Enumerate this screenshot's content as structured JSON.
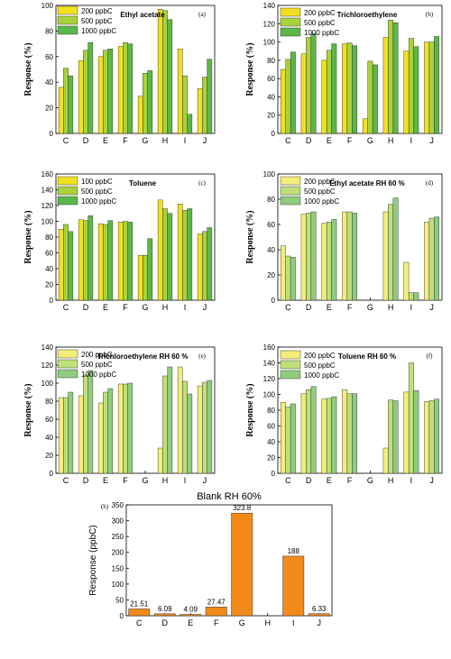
{
  "chart_data": [
    {
      "panel": "(a)",
      "type": "bar",
      "title": "Ethyl acetate",
      "ylabel": "Response (%)",
      "categories": [
        "C",
        "D",
        "E",
        "F",
        "G",
        "H",
        "I",
        "J"
      ],
      "ylim": [
        0,
        100
      ],
      "yticks": [
        0,
        20,
        40,
        60,
        80,
        100
      ],
      "series": [
        {
          "name": "200 ppbC",
          "color": "#f2e020",
          "values": [
            36,
            57,
            60,
            68,
            29,
            97,
            66,
            35
          ]
        },
        {
          "name": "500 ppbC",
          "color": "#a8d33c",
          "values": [
            51,
            65,
            65,
            71,
            47,
            96,
            45,
            44
          ]
        },
        {
          "name": "1000 ppbC",
          "color": "#5db649",
          "values": [
            45,
            71,
            66,
            70,
            49,
            89,
            15,
            58
          ]
        }
      ]
    },
    {
      "panel": "(b)",
      "type": "bar",
      "title": "Trichloroethylene",
      "ylabel": "Response (%)",
      "categories": [
        "C",
        "D",
        "E",
        "F",
        "G",
        "H",
        "I",
        "J"
      ],
      "ylim": [
        0,
        140
      ],
      "yticks": [
        0,
        20,
        40,
        60,
        80,
        100,
        120,
        140
      ],
      "series": [
        {
          "name": "200 ppbC",
          "color": "#f2e020",
          "values": [
            70,
            87,
            80,
            98,
            16,
            105,
            90,
            100
          ]
        },
        {
          "name": "500 ppbC",
          "color": "#a8d33c",
          "values": [
            81,
            105,
            91,
            99,
            79,
            124,
            104,
            100
          ]
        },
        {
          "name": "1000 ppbC",
          "color": "#5db649",
          "values": [
            89,
            109,
            98,
            96,
            75,
            121,
            95,
            106
          ]
        }
      ]
    },
    {
      "panel": "(c)",
      "type": "bar",
      "title": "Toluene",
      "ylabel": "Response (%)",
      "categories": [
        "C",
        "D",
        "E",
        "F",
        "G",
        "H",
        "I",
        "J"
      ],
      "ylim": [
        0,
        160
      ],
      "yticks": [
        0,
        20,
        40,
        60,
        80,
        100,
        120,
        140,
        160
      ],
      "series": [
        {
          "name": "100 ppbC",
          "color": "#f2e020",
          "values": [
            90,
            102,
            97,
            99,
            57,
            127,
            122,
            84
          ]
        },
        {
          "name": "500 ppbC",
          "color": "#a8d33c",
          "values": [
            96,
            101,
            96,
            100,
            57,
            116,
            114,
            87
          ]
        },
        {
          "name": "1000 ppbC",
          "color": "#5db649",
          "values": [
            87,
            107,
            101,
            99,
            78,
            110,
            116,
            92
          ]
        }
      ]
    },
    {
      "panel": "(d)",
      "type": "bar",
      "title": "Ethyl acetate  RH 60 %",
      "ylabel": "Response (%)",
      "categories": [
        "C",
        "D",
        "E",
        "F",
        "G",
        "H",
        "I",
        "J"
      ],
      "ylim": [
        0,
        100
      ],
      "yticks": [
        0,
        20,
        40,
        60,
        80,
        100
      ],
      "series": [
        {
          "name": "200 ppbC",
          "color": "#f3ed7a",
          "values": [
            43,
            68,
            61,
            70,
            0,
            70,
            30,
            62
          ]
        },
        {
          "name": "500 ppbC",
          "color": "#bfe07a",
          "values": [
            35,
            69,
            62,
            70,
            0,
            76,
            6,
            65
          ]
        },
        {
          "name": "1000 ppbC",
          "color": "#8fcc7e",
          "values": [
            34,
            70,
            64,
            69,
            0,
            81,
            6,
            66
          ]
        }
      ]
    },
    {
      "panel": "(e)",
      "type": "bar",
      "title": "Trichloroethylene  RH 60 %",
      "ylabel": "Response (%)",
      "categories": [
        "C",
        "D",
        "E",
        "F",
        "G",
        "H",
        "I",
        "J"
      ],
      "ylim": [
        0,
        140
      ],
      "yticks": [
        0,
        20,
        40,
        60,
        80,
        100,
        120,
        140
      ],
      "series": [
        {
          "name": "200 ppbC",
          "color": "#f3ed7a",
          "values": [
            84,
            86,
            78,
            99,
            0,
            28,
            118,
            97
          ]
        },
        {
          "name": "500 ppbC",
          "color": "#bfe07a",
          "values": [
            84,
            109,
            90,
            99,
            0,
            108,
            102,
            101
          ]
        },
        {
          "name": "1000 ppbC",
          "color": "#8fcc7e",
          "values": [
            90,
            114,
            94,
            100,
            0,
            118,
            88,
            103
          ]
        }
      ]
    },
    {
      "panel": "(f)",
      "type": "bar",
      "title": "Toluene  RH 60 %",
      "ylabel": "Response (%)",
      "categories": [
        "C",
        "D",
        "E",
        "F",
        "G",
        "H",
        "I",
        "J"
      ],
      "ylim": [
        0,
        160
      ],
      "yticks": [
        0,
        20,
        40,
        60,
        80,
        100,
        120,
        140,
        160
      ],
      "series": [
        {
          "name": "200 ppbC",
          "color": "#f3ed7a",
          "values": [
            90,
            101,
            94,
            106,
            0,
            32,
            103,
            91
          ]
        },
        {
          "name": "500 ppbC",
          "color": "#bfe07a",
          "values": [
            84,
            106,
            95,
            101,
            0,
            93,
            140,
            92
          ]
        },
        {
          "name": "1000 ppbC",
          "color": "#8fcc7e",
          "values": [
            88,
            110,
            97,
            101,
            0,
            92,
            105,
            94
          ]
        }
      ]
    },
    {
      "panel": "(h)",
      "type": "bar",
      "title": "Blank RH 60%",
      "ylabel": "Response (ppbC)",
      "categories": [
        "C",
        "D",
        "E",
        "F",
        "G",
        "H",
        "I",
        "J"
      ],
      "ylim": [
        0,
        350
      ],
      "yticks": [
        0,
        50,
        100,
        150,
        200,
        250,
        300,
        350
      ],
      "color": "#f28a1a",
      "values": [
        21.51,
        6.09,
        4.09,
        27.47,
        323.8,
        0,
        188,
        6.33
      ],
      "data_labels": [
        "21.51",
        "6.09",
        "4.09",
        "27.47",
        "323.8",
        "",
        "188",
        "6.33"
      ]
    }
  ]
}
